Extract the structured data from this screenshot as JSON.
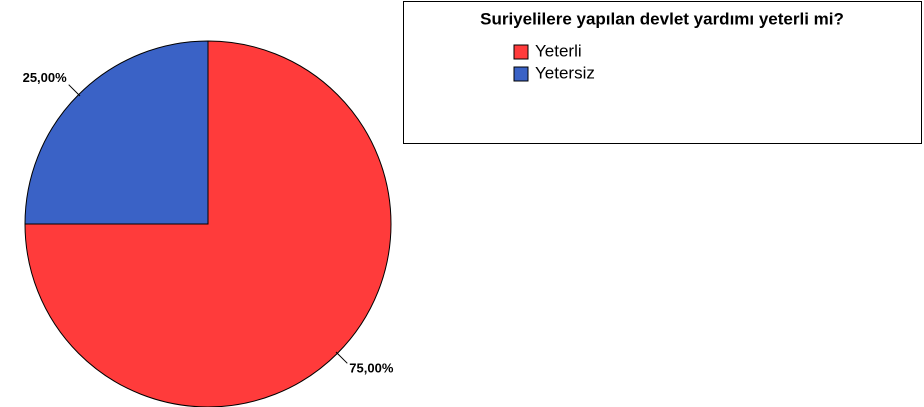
{
  "chart_data": {
    "type": "pie",
    "title": "Suriyelilere yapılan devlet yardımı yeterli mi?",
    "categories": [
      "Yeterli",
      "Yetersiz"
    ],
    "values": [
      75,
      25
    ],
    "value_labels": [
      "75,00%",
      "25,00%"
    ],
    "colors": [
      "#ff3b3b",
      "#3a62c6"
    ]
  }
}
